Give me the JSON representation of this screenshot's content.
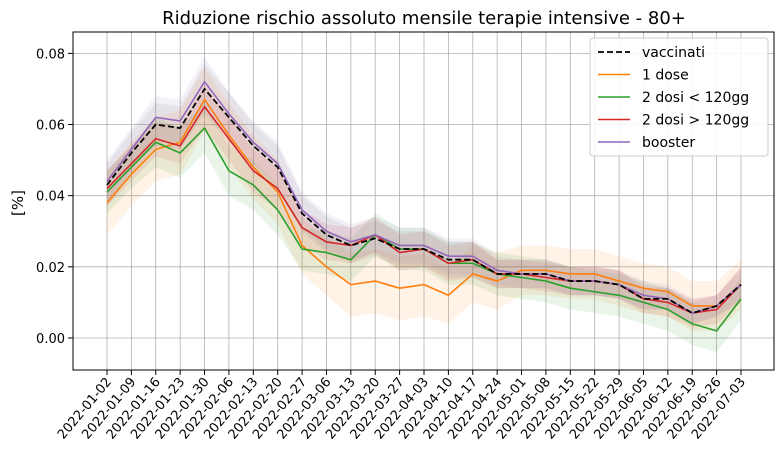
{
  "chart_data": {
    "type": "line",
    "title": "Riduzione rischio assoluto mensile terapie intensive - 80+",
    "xlabel": "",
    "ylabel": "[%]",
    "x": [
      "2022-01-02",
      "2022-01-09",
      "2022-01-16",
      "2022-01-23",
      "2022-01-30",
      "2022-02-06",
      "2022-02-13",
      "2022-02-20",
      "2022-02-27",
      "2022-03-06",
      "2022-03-13",
      "2022-03-20",
      "2022-03-27",
      "2022-04-03",
      "2022-04-10",
      "2022-04-17",
      "2022-04-24",
      "2022-05-01",
      "2022-05-08",
      "2022-05-15",
      "2022-05-22",
      "2022-05-29",
      "2022-06-05",
      "2022-06-12",
      "2022-06-19",
      "2022-06-26",
      "2022-07-03"
    ],
    "ylim": [
      -0.009,
      0.086
    ],
    "yticks": [
      0.0,
      0.02,
      0.04,
      0.06,
      0.08
    ],
    "ytick_labels": [
      "0.00",
      "0.02",
      "0.04",
      "0.06",
      "0.08"
    ],
    "grid": true,
    "legend_position": "top-right",
    "confidence_bands": true,
    "series": [
      {
        "name": "vaccinati",
        "color": "#000000",
        "dashed": true,
        "values": [
          0.043,
          0.052,
          0.06,
          0.059,
          0.07,
          0.062,
          0.054,
          0.048,
          0.035,
          0.029,
          0.026,
          0.028,
          0.025,
          0.025,
          0.022,
          0.022,
          0.018,
          0.018,
          0.018,
          0.016,
          0.016,
          0.015,
          0.011,
          0.011,
          0.007,
          0.009,
          0.015
        ],
        "lower": [
          0.037,
          0.046,
          0.054,
          0.053,
          0.063,
          0.055,
          0.048,
          0.042,
          0.03,
          0.024,
          0.021,
          0.023,
          0.02,
          0.02,
          0.017,
          0.017,
          0.014,
          0.014,
          0.014,
          0.012,
          0.012,
          0.011,
          0.008,
          0.008,
          0.004,
          0.006,
          0.01
        ],
        "upper": [
          0.049,
          0.058,
          0.066,
          0.065,
          0.077,
          0.069,
          0.06,
          0.054,
          0.04,
          0.034,
          0.031,
          0.033,
          0.03,
          0.03,
          0.027,
          0.027,
          0.022,
          0.022,
          0.022,
          0.02,
          0.02,
          0.019,
          0.014,
          0.014,
          0.01,
          0.012,
          0.02
        ]
      },
      {
        "name": "1 dose",
        "color": "#ff7f0e",
        "dashed": false,
        "values": [
          0.038,
          0.046,
          0.053,
          0.055,
          0.067,
          0.057,
          0.048,
          0.041,
          0.026,
          0.02,
          0.015,
          0.016,
          0.014,
          0.015,
          0.012,
          0.018,
          0.016,
          0.019,
          0.019,
          0.018,
          0.018,
          0.016,
          0.014,
          0.013,
          0.009,
          0.009,
          0.015
        ],
        "lower": [
          0.029,
          0.037,
          0.044,
          0.046,
          0.058,
          0.048,
          0.039,
          0.032,
          0.018,
          0.012,
          0.006,
          0.007,
          0.005,
          0.006,
          0.004,
          0.01,
          0.008,
          0.012,
          0.012,
          0.011,
          0.011,
          0.009,
          0.007,
          0.006,
          0.002,
          0.002,
          0.008
        ],
        "upper": [
          0.047,
          0.055,
          0.062,
          0.064,
          0.076,
          0.066,
          0.057,
          0.05,
          0.034,
          0.028,
          0.024,
          0.025,
          0.023,
          0.024,
          0.02,
          0.026,
          0.024,
          0.026,
          0.026,
          0.025,
          0.025,
          0.023,
          0.021,
          0.02,
          0.016,
          0.016,
          0.022
        ]
      },
      {
        "name": "2 dosi < 120gg",
        "color": "#2ca02c",
        "dashed": false,
        "values": [
          0.041,
          0.048,
          0.055,
          0.052,
          0.059,
          0.047,
          0.043,
          0.036,
          0.025,
          0.024,
          0.022,
          0.029,
          0.025,
          0.025,
          0.021,
          0.021,
          0.018,
          0.017,
          0.016,
          0.014,
          0.013,
          0.012,
          0.01,
          0.008,
          0.004,
          0.002,
          0.011
        ],
        "lower": [
          0.035,
          0.042,
          0.048,
          0.045,
          0.052,
          0.04,
          0.036,
          0.029,
          0.019,
          0.018,
          0.016,
          0.023,
          0.019,
          0.019,
          0.015,
          0.015,
          0.012,
          0.011,
          0.01,
          0.008,
          0.007,
          0.006,
          0.004,
          0.002,
          -0.002,
          -0.004,
          0.005
        ],
        "upper": [
          0.047,
          0.054,
          0.062,
          0.059,
          0.066,
          0.054,
          0.05,
          0.043,
          0.031,
          0.03,
          0.028,
          0.035,
          0.031,
          0.031,
          0.027,
          0.027,
          0.024,
          0.023,
          0.022,
          0.02,
          0.019,
          0.018,
          0.016,
          0.014,
          0.01,
          0.008,
          0.017
        ]
      },
      {
        "name": "2 dosi > 120gg",
        "color": "#d62728",
        "dashed": false,
        "values": [
          0.042,
          0.049,
          0.056,
          0.054,
          0.065,
          0.056,
          0.047,
          0.042,
          0.031,
          0.027,
          0.026,
          0.029,
          0.024,
          0.025,
          0.021,
          0.022,
          0.018,
          0.018,
          0.017,
          0.016,
          0.016,
          0.015,
          0.011,
          0.01,
          0.007,
          0.008,
          0.015
        ],
        "lower": [
          0.037,
          0.044,
          0.051,
          0.049,
          0.059,
          0.05,
          0.041,
          0.036,
          0.026,
          0.022,
          0.021,
          0.024,
          0.019,
          0.02,
          0.016,
          0.017,
          0.014,
          0.014,
          0.013,
          0.012,
          0.012,
          0.011,
          0.007,
          0.006,
          0.003,
          0.004,
          0.01
        ],
        "upper": [
          0.047,
          0.054,
          0.061,
          0.059,
          0.071,
          0.062,
          0.053,
          0.048,
          0.036,
          0.032,
          0.031,
          0.034,
          0.029,
          0.03,
          0.026,
          0.027,
          0.022,
          0.022,
          0.021,
          0.02,
          0.02,
          0.019,
          0.015,
          0.014,
          0.011,
          0.012,
          0.02
        ]
      },
      {
        "name": "booster",
        "color": "#9467bd",
        "dashed": false,
        "values": [
          0.044,
          0.053,
          0.062,
          0.061,
          0.072,
          0.063,
          0.055,
          0.049,
          0.036,
          0.03,
          0.027,
          0.029,
          0.026,
          0.026,
          0.023,
          0.023,
          0.019,
          0.018,
          0.018,
          0.016,
          0.016,
          0.015,
          0.012,
          0.011,
          0.007,
          0.009,
          0.015
        ],
        "lower": [
          0.038,
          0.047,
          0.056,
          0.055,
          0.065,
          0.057,
          0.049,
          0.043,
          0.031,
          0.025,
          0.022,
          0.024,
          0.021,
          0.021,
          0.018,
          0.018,
          0.015,
          0.014,
          0.014,
          0.012,
          0.012,
          0.011,
          0.008,
          0.008,
          0.004,
          0.006,
          0.011
        ],
        "upper": [
          0.05,
          0.059,
          0.068,
          0.067,
          0.079,
          0.069,
          0.061,
          0.055,
          0.041,
          0.035,
          0.032,
          0.034,
          0.031,
          0.031,
          0.028,
          0.028,
          0.023,
          0.022,
          0.022,
          0.02,
          0.02,
          0.019,
          0.016,
          0.015,
          0.011,
          0.012,
          0.019
        ]
      }
    ]
  }
}
